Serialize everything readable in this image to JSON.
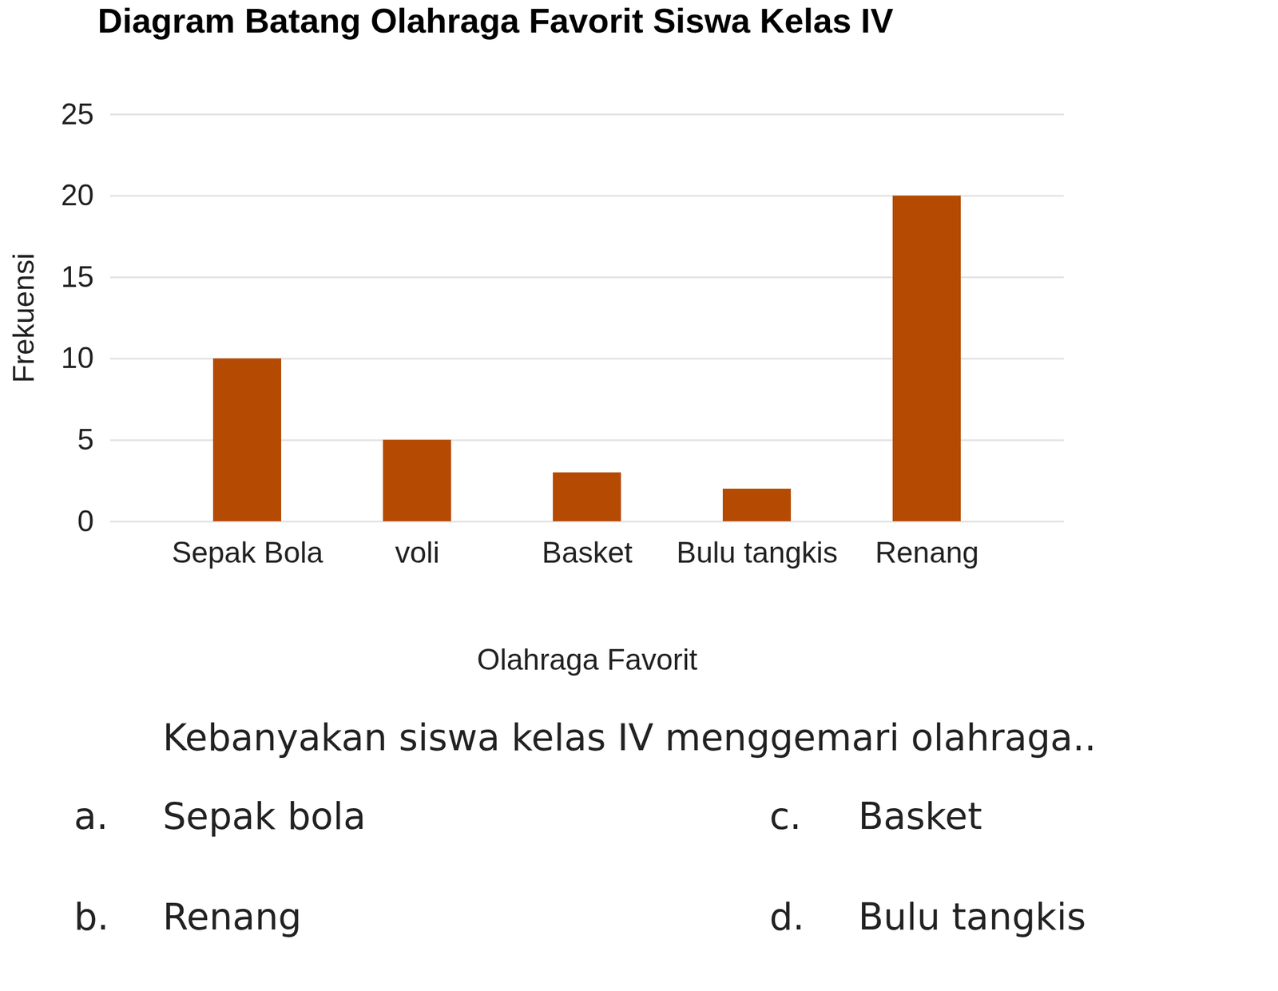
{
  "chart_data": {
    "type": "bar",
    "title": "Diagram Batang Olahraga Favorit Siswa Kelas IV",
    "x_label": "Olahraga Favorit",
    "y_label": "Frekuensi",
    "categories": [
      "Sepak Bola",
      "voli",
      "Basket",
      "Bulu tangkis",
      "Renang"
    ],
    "values": [
      10,
      5,
      3,
      2,
      20
    ],
    "color": "#b54a02",
    "ylim": [
      0,
      25
    ],
    "yticks": [
      0,
      5,
      10,
      15,
      20,
      25
    ],
    "grid": true
  },
  "question": "Kebanyakan siswa kelas IV menggemari olahraga..",
  "options": [
    {
      "label": "a.",
      "text": "Sepak bola"
    },
    {
      "label": "b.",
      "text": "Renang"
    },
    {
      "label": "c.",
      "text": "Basket"
    },
    {
      "label": "d.",
      "text": "Bulu tangkis"
    }
  ]
}
